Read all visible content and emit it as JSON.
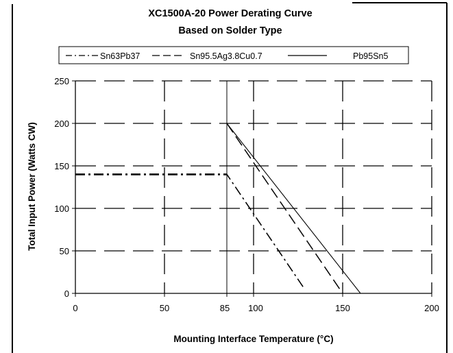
{
  "chart_data": {
    "type": "line",
    "title": "XC1500A-20 Power Derating Curve",
    "subtitle": "Based on Solder Type",
    "xlabel": "Mounting Interface Temperature (°C)",
    "ylabel": "Total Input Power (Watts CW)",
    "xlim": [
      0,
      200
    ],
    "ylim": [
      0,
      250
    ],
    "x_ticks": [
      0,
      50,
      85,
      100,
      150,
      200
    ],
    "y_ticks": [
      0,
      50,
      100,
      150,
      200,
      250
    ],
    "grid": true,
    "legend_position": "top",
    "series": [
      {
        "name": "Sn63Pb37",
        "style": "dash-dot",
        "x": [
          0,
          85,
          128
        ],
        "y": [
          140,
          140,
          7
        ]
      },
      {
        "name": "Sn95.5Ag3.8Cu0.7",
        "style": "dashed",
        "x": [
          85,
          150
        ],
        "y": [
          200,
          0
        ]
      },
      {
        "name": "Pb95Sn5",
        "style": "solid",
        "x": [
          85,
          160
        ],
        "y": [
          200,
          0
        ]
      }
    ]
  }
}
